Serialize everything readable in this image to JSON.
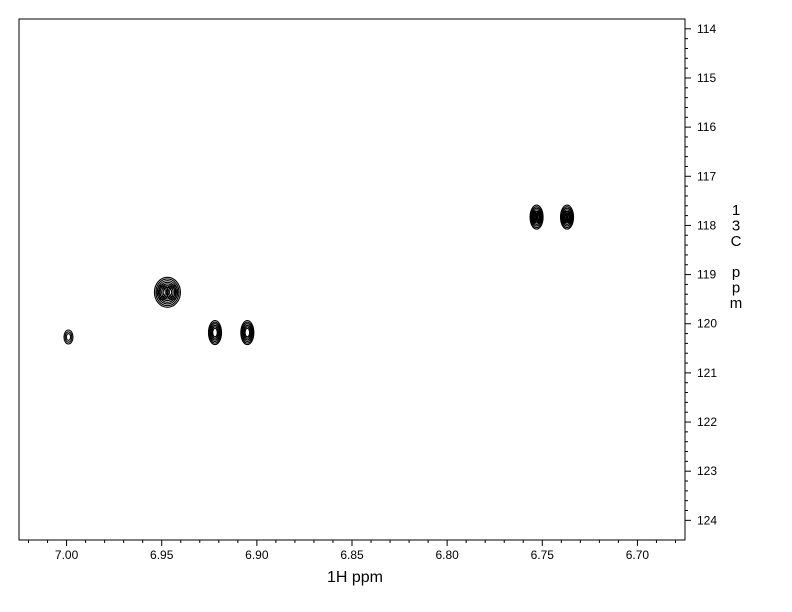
{
  "chart_data": {
    "type": "contour",
    "xlabel": "1H ppm",
    "ylabel": "13C ppm",
    "xlim": [
      7.025,
      6.675
    ],
    "ylim": [
      113.8,
      124.4
    ],
    "x_reversed": true,
    "y_reversed": true,
    "x_major_ticks": [
      "7.00",
      "6.95",
      "6.90",
      "6.85",
      "6.80",
      "6.75",
      "6.70"
    ],
    "y_major_ticks": [
      "114",
      "115",
      "116",
      "117",
      "118",
      "119",
      "120",
      "121",
      "122",
      "123",
      "124"
    ],
    "grid": false,
    "peaks": [
      {
        "x": 6.999,
        "y": 120.27,
        "lobes": 1,
        "size": "small"
      },
      {
        "x": 6.947,
        "y": 119.36,
        "lobes": 2,
        "size": "large"
      },
      {
        "x": 6.922,
        "y": 120.18,
        "lobes": 1,
        "size": "medium"
      },
      {
        "x": 6.905,
        "y": 120.18,
        "lobes": 1,
        "size": "medium"
      },
      {
        "x": 6.753,
        "y": 117.83,
        "lobes": 2,
        "size": "medium"
      },
      {
        "x": 6.737,
        "y": 117.83,
        "lobes": 2,
        "size": "medium"
      }
    ],
    "colors": {
      "contour": "#000000",
      "frame": "#000000",
      "background": "#ffffff"
    }
  }
}
